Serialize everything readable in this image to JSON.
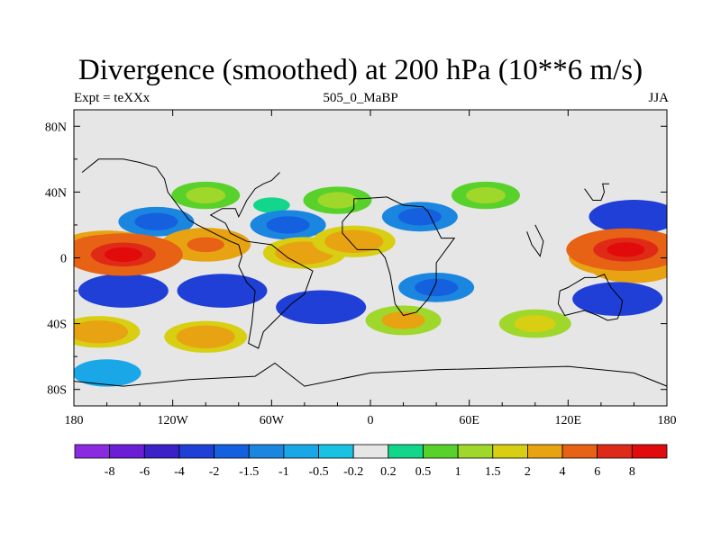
{
  "chart_data": {
    "type": "contour-map",
    "title": "Divergence (smoothed) at 200 hPa (10**6 m/s)",
    "left_label": "Expt = teXXx",
    "center_label": "505_0_MaBP",
    "right_label": "JJA",
    "x_ticks": [
      {
        "value": -180,
        "label": "180"
      },
      {
        "value": -120,
        "label": "120W"
      },
      {
        "value": -60,
        "label": "60W"
      },
      {
        "value": 0,
        "label": "0"
      },
      {
        "value": 60,
        "label": "60E"
      },
      {
        "value": 120,
        "label": "120E"
      },
      {
        "value": 180,
        "label": "180"
      }
    ],
    "y_ticks": [
      {
        "value": 80,
        "label": "80N"
      },
      {
        "value": 40,
        "label": "40N"
      },
      {
        "value": 0,
        "label": "0"
      },
      {
        "value": -40,
        "label": "40S"
      },
      {
        "value": -80,
        "label": "80S"
      }
    ],
    "xlim": [
      -180,
      180
    ],
    "ylim": [
      -90,
      90
    ],
    "colorbar": {
      "levels": [
        "-8",
        "-6",
        "-4",
        "-2",
        "-1.5",
        "-1",
        "-0.5",
        "-0.2",
        "0.2",
        "0.5",
        "1",
        "1.5",
        "2",
        "4",
        "6",
        "8"
      ],
      "colors": [
        "#8a2be2",
        "#6a1fd6",
        "#3b22c8",
        "#1f3fd6",
        "#1560de",
        "#1b86e0",
        "#1aa7e8",
        "#19c1e3",
        "#e6e6e6",
        "#12d68a",
        "#58d12a",
        "#9fd72a",
        "#d8cf12",
        "#e8a312",
        "#e76214",
        "#e02a18",
        "#e20b0b"
      ]
    },
    "field": [
      {
        "lon": -160,
        "lat": 5,
        "value": 6
      },
      {
        "lon": -150,
        "lat": 2,
        "value": 8
      },
      {
        "lon": -100,
        "lat": 8,
        "value": 4
      },
      {
        "lon": -40,
        "lat": 3,
        "value": 3
      },
      {
        "lon": -10,
        "lat": 10,
        "value": 3
      },
      {
        "lon": 155,
        "lat": 5,
        "value": 8
      },
      {
        "lon": 150,
        "lat": 0,
        "value": 5
      },
      {
        "lon": 160,
        "lat": -5,
        "value": 4
      },
      {
        "lon": -100,
        "lat": -48,
        "value": 3
      },
      {
        "lon": -165,
        "lat": -45,
        "value": 3
      },
      {
        "lon": 20,
        "lat": -38,
        "value": 2
      },
      {
        "lon": 100,
        "lat": -40,
        "value": 1.5
      },
      {
        "lon": -100,
        "lat": 38,
        "value": 1
      },
      {
        "lon": -20,
        "lat": 35,
        "value": 1
      },
      {
        "lon": 70,
        "lat": 38,
        "value": 1
      },
      {
        "lon": -150,
        "lat": -20,
        "value": -4
      },
      {
        "lon": -90,
        "lat": -20,
        "value": -4
      },
      {
        "lon": -30,
        "lat": -30,
        "value": -4
      },
      {
        "lon": 40,
        "lat": -18,
        "value": -2
      },
      {
        "lon": 150,
        "lat": -25,
        "value": -4
      },
      {
        "lon": 160,
        "lat": 25,
        "value": -4
      },
      {
        "lon": -130,
        "lat": 22,
        "value": -2
      },
      {
        "lon": -50,
        "lat": 20,
        "value": -2
      },
      {
        "lon": 30,
        "lat": 25,
        "value": -2
      },
      {
        "lon": -160,
        "lat": -70,
        "value": -1
      },
      {
        "lon": -60,
        "lat": 32,
        "value": 0.2
      }
    ]
  }
}
